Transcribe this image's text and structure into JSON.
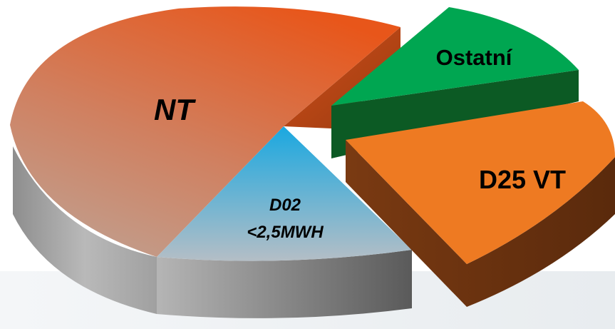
{
  "chart_data": {
    "type": "pie",
    "style": "3d-exploded",
    "title": "",
    "legend": "none",
    "slices": [
      {
        "label": "NT",
        "value": 47,
        "color": "#e8561a",
        "italic": true
      },
      {
        "label": "D02 <2,5MWH",
        "label_lines": [
          "D02",
          "<2,5MWH"
        ],
        "value": 15,
        "color": "#1aa8e0",
        "italic": true
      },
      {
        "label": "D25 VT",
        "value": 27,
        "color": "#ee7a22",
        "italic": false,
        "exploded": true
      },
      {
        "label": "Ostatní",
        "value": 11,
        "color": "#00a651",
        "italic": false,
        "exploded": true
      }
    ]
  }
}
